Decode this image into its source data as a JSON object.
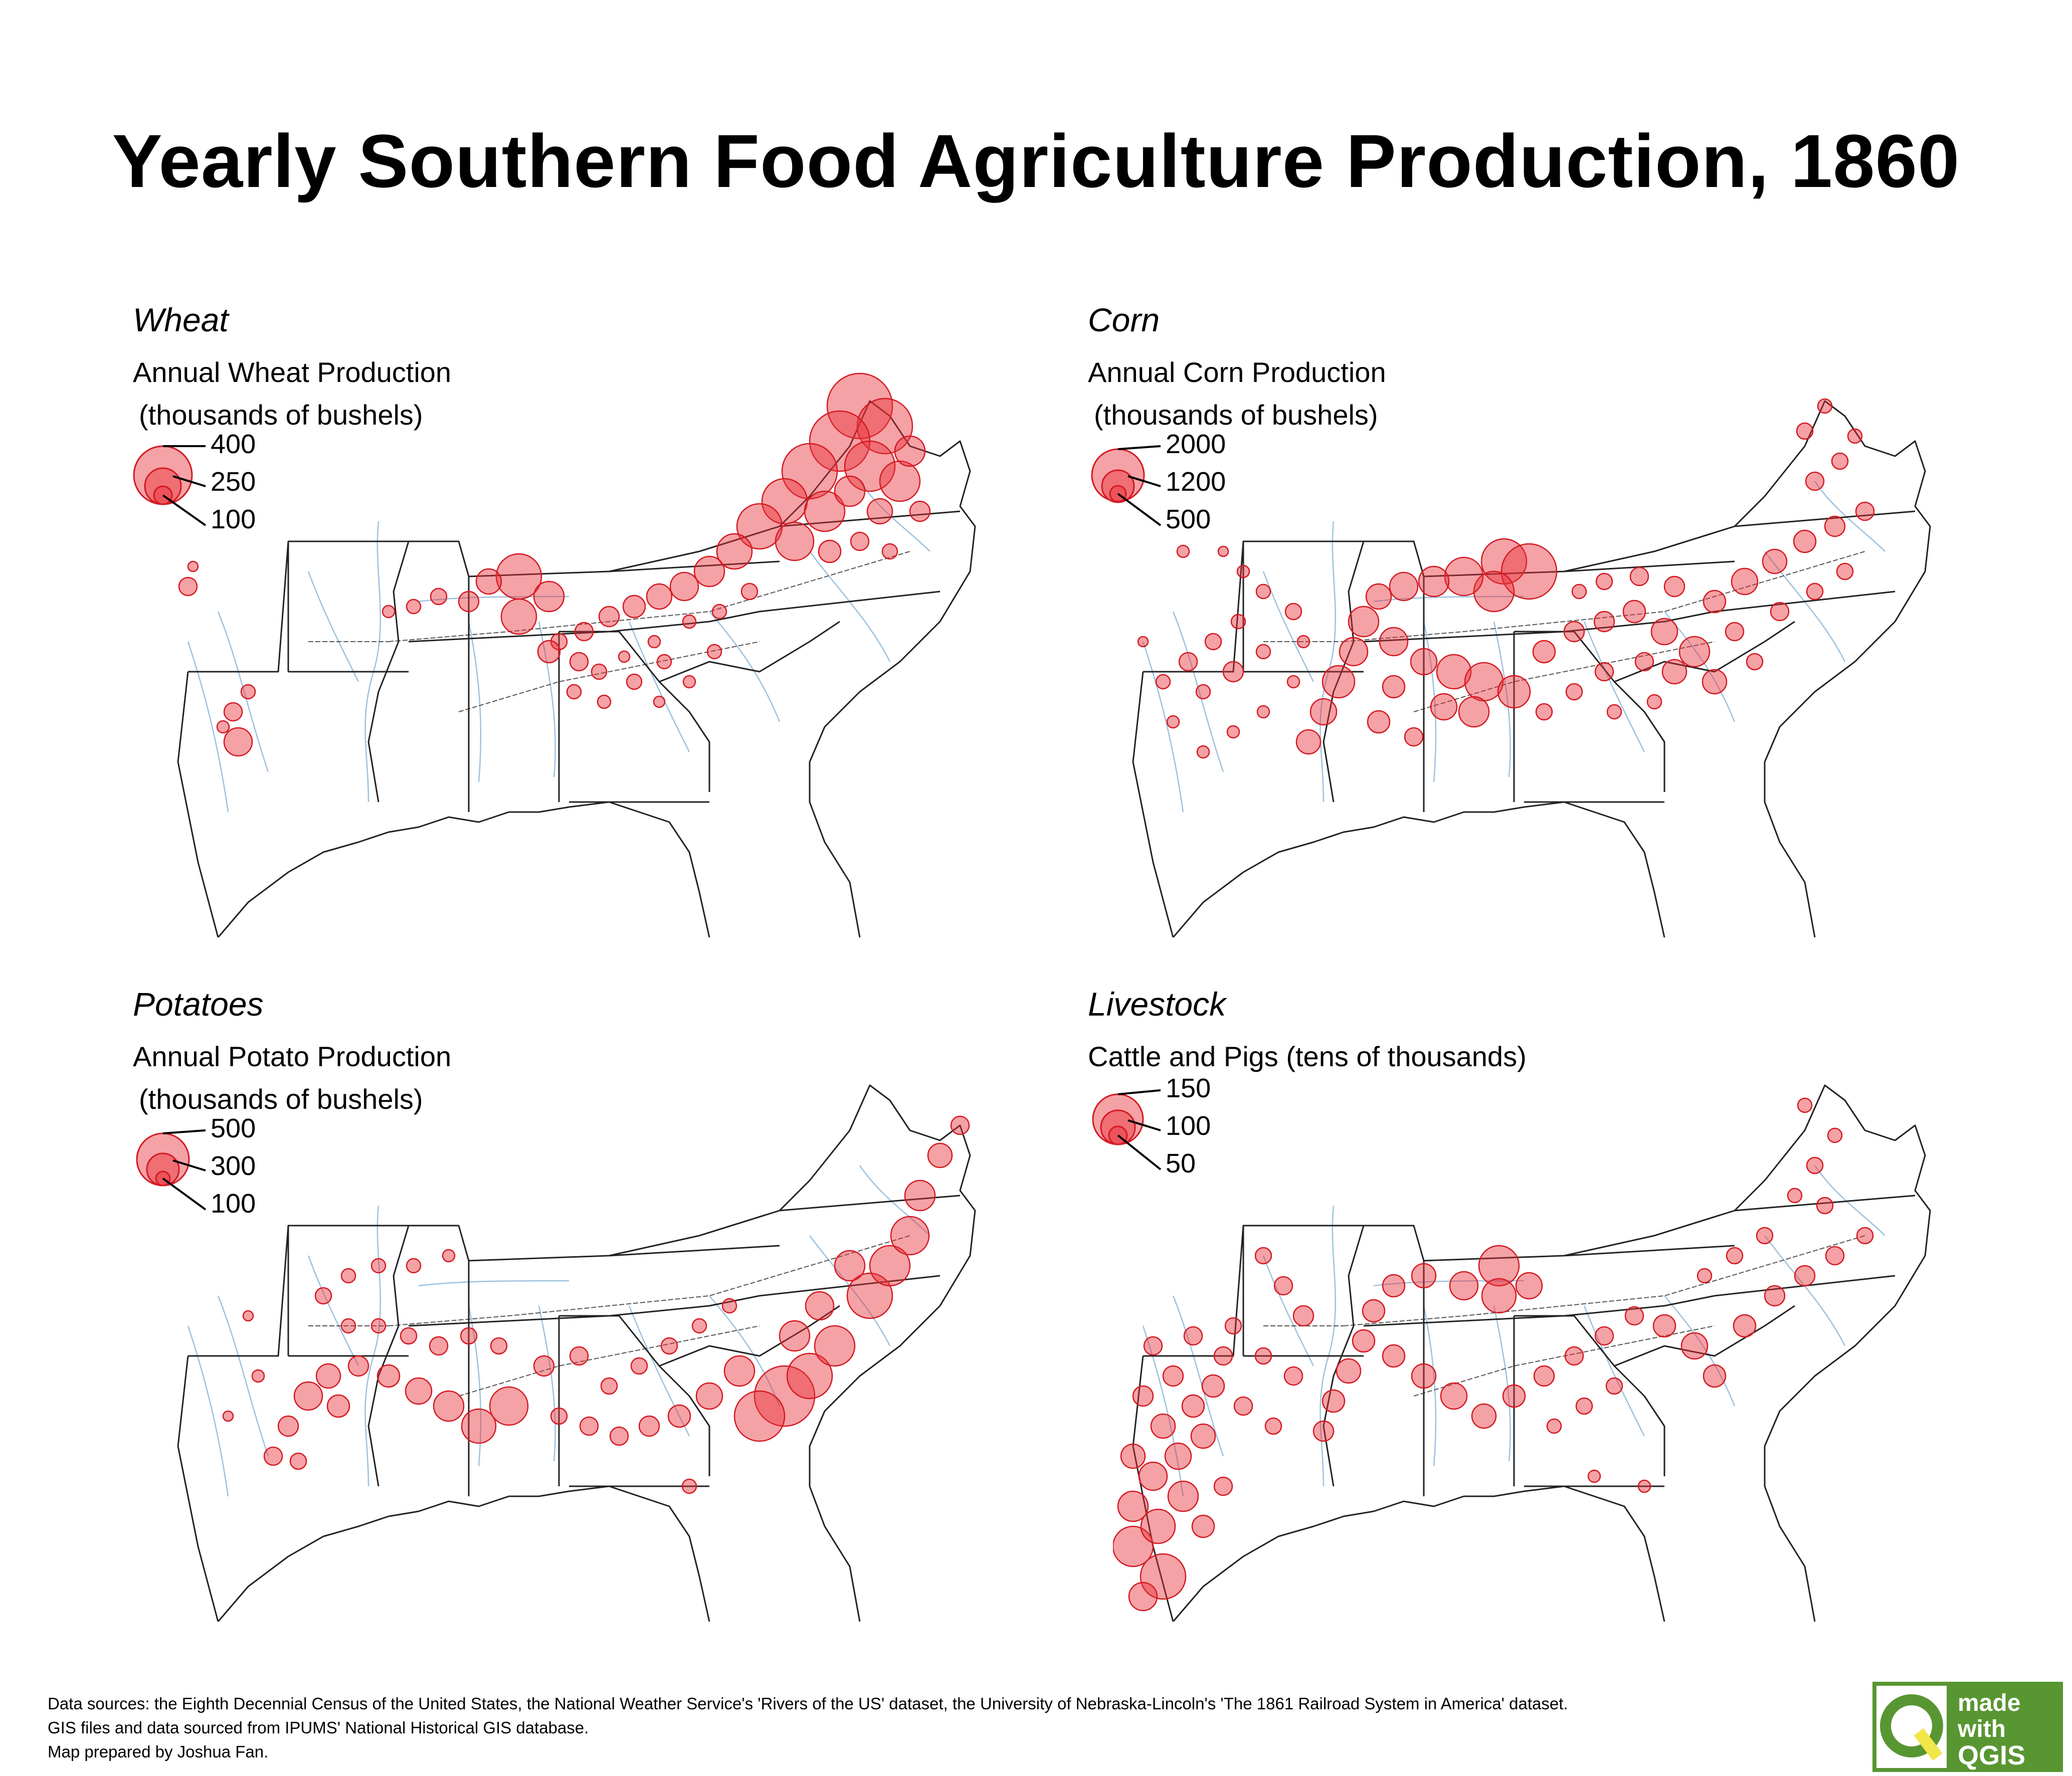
{
  "title": "Yearly Southern Food Agriculture Production, 1860",
  "colors": {
    "circle_fill": "#e8303a",
    "circle_stroke": "#d41a22",
    "river": "#9cc2e0",
    "border": "#222222",
    "qgis_green": "#589632",
    "qgis_yellow": "#f0e64a"
  },
  "panels": {
    "wheat": {
      "title": "Wheat",
      "subtitle1": "Annual Wheat Production",
      "subtitle2": "(thousands of bushels)",
      "legend": [
        "400",
        "250",
        "100"
      ]
    },
    "corn": {
      "title": "Corn",
      "subtitle1": "Annual Corn Production",
      "subtitle2": "(thousands of bushels)",
      "legend": [
        "2000",
        "1200",
        "500"
      ]
    },
    "potatoes": {
      "title": "Potatoes",
      "subtitle1": "Annual Potato Production",
      "subtitle2": "(thousands of bushels)",
      "legend": [
        "500",
        "300",
        "100"
      ]
    },
    "livestock": {
      "title": "Livestock",
      "subtitle1": "Cattle and Pigs (tens of thousands)",
      "legend": [
        "150",
        "100",
        "50"
      ]
    }
  },
  "footer": {
    "line1": "Data sources: the Eighth Decennial Census of the United States, the National Weather Service's 'Rivers of the US' dataset, the University of Nebraska-Lincoln's 'The 1861 Railroad System in America' dataset.",
    "line2": "GIS files and data sourced from IPUMS' National Historical GIS database.",
    "line3": "Map prepared by Joshua Fan."
  },
  "logo": {
    "line1": "made",
    "line2": "with",
    "line3": "QGIS"
  }
}
